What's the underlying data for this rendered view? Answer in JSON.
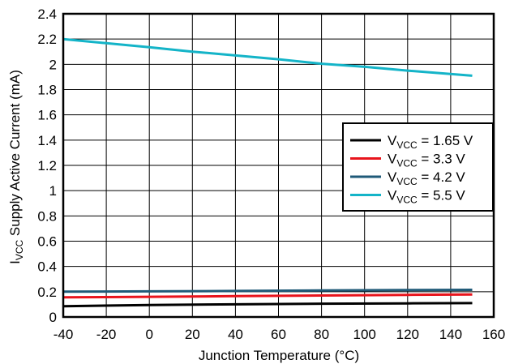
{
  "chart_data": {
    "type": "line",
    "xlabel": "Junction Temperature (°C)",
    "ylabel": {
      "main": "I",
      "sub": "VCC",
      "rest": " Supply Active Current (mA)"
    },
    "xlim": [
      -40,
      160
    ],
    "ylim": [
      0,
      2.4
    ],
    "xticks": [
      -40,
      -20,
      0,
      20,
      40,
      60,
      80,
      100,
      120,
      140,
      160
    ],
    "yticks": [
      0,
      0.2,
      0.4,
      0.6,
      0.8,
      1,
      1.2,
      1.4,
      1.6,
      1.8,
      2,
      2.2,
      2.4
    ],
    "grid": true,
    "legend_position": "right",
    "series": [
      {
        "name": {
          "main": "V",
          "sub": "VCC",
          "rest": " = 1.65 V"
        },
        "color": "#000000",
        "x": [
          -40,
          0,
          40,
          80,
          120,
          150
        ],
        "y": [
          0.085,
          0.095,
          0.1,
          0.105,
          0.108,
          0.11
        ]
      },
      {
        "name": {
          "main": "V",
          "sub": "VCC",
          "rest": " = 3.3 V"
        },
        "color": "#e8141c",
        "x": [
          -40,
          0,
          40,
          80,
          120,
          150
        ],
        "y": [
          0.155,
          0.16,
          0.165,
          0.17,
          0.175,
          0.178
        ]
      },
      {
        "name": {
          "main": "V",
          "sub": "VCC",
          "rest": " = 4.2 V"
        },
        "color": "#1f5a78",
        "x": [
          -40,
          0,
          40,
          80,
          120,
          150
        ],
        "y": [
          0.2,
          0.203,
          0.206,
          0.21,
          0.213,
          0.215
        ]
      },
      {
        "name": {
          "main": "V",
          "sub": "VCC",
          "rest": " = 5.5 V"
        },
        "color": "#14b4c8",
        "x": [
          -40,
          0,
          20,
          40,
          60,
          80,
          100,
          120,
          150
        ],
        "y": [
          2.2,
          2.135,
          2.1,
          2.07,
          2.04,
          2.005,
          1.98,
          1.95,
          1.91
        ]
      }
    ]
  }
}
